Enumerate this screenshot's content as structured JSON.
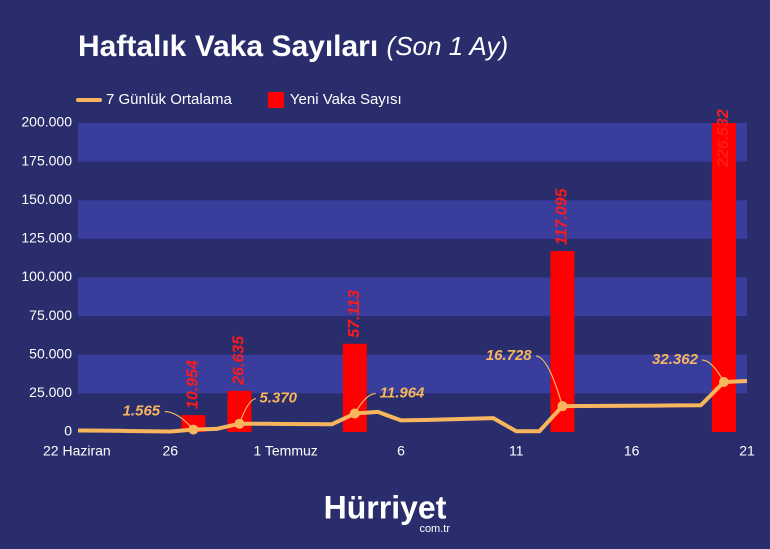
{
  "chart_data": {
    "type": "bar",
    "title": "Haftalık Vaka Sayıları",
    "subtitle": "(Son 1 Ay)",
    "categories": [
      "22 Haziran",
      null,
      null,
      null,
      "26",
      null,
      null,
      null,
      null,
      "1 Temmuz",
      null,
      null,
      null,
      null,
      "6",
      null,
      null,
      null,
      null,
      "11",
      null,
      null,
      null,
      null,
      "16",
      null,
      null,
      null,
      null,
      "21"
    ],
    "series": [
      {
        "name": "Yeni Vaka Sayısı",
        "type": "bar",
        "color": "#ff0000",
        "values": [
          null,
          null,
          null,
          null,
          null,
          10954,
          null,
          26635,
          null,
          null,
          null,
          null,
          57113,
          null,
          null,
          null,
          null,
          null,
          null,
          null,
          null,
          117095,
          null,
          null,
          null,
          null,
          null,
          null,
          226532,
          null
        ],
        "value_labels": [
          null,
          null,
          null,
          null,
          null,
          "10.954",
          null,
          "26.635",
          null,
          null,
          null,
          null,
          "57.113",
          null,
          null,
          null,
          null,
          null,
          null,
          null,
          null,
          "117.095",
          null,
          null,
          null,
          null,
          null,
          null,
          "226.532",
          null
        ]
      },
      {
        "name": "7 Günlük Ortalama",
        "type": "line",
        "color": "#f7b65e",
        "values": [
          1000,
          900,
          700,
          500,
          300,
          1565,
          2000,
          5370,
          5300,
          5200,
          5100,
          5000,
          11964,
          13000,
          7500,
          7800,
          8200,
          8600,
          9000,
          500,
          500,
          16728,
          16800,
          16900,
          17000,
          17100,
          17200,
          17300,
          32362,
          33000
        ],
        "value_labels": [
          null,
          null,
          null,
          null,
          null,
          "1.565",
          null,
          "5.370",
          null,
          null,
          null,
          null,
          "11.964",
          null,
          null,
          null,
          null,
          null,
          null,
          null,
          null,
          "16.728",
          null,
          null,
          null,
          null,
          null,
          null,
          "32.362",
          null
        ]
      }
    ],
    "ylim": [
      0,
      200000
    ],
    "yticks": [
      0,
      {
        "value": 25000,
        "label": "25.000"
      },
      {
        "value": 50000,
        "label": "50.000"
      },
      {
        "value": 75000,
        "label": "75.000"
      },
      {
        "value": 100000,
        "label": "100.000"
      },
      {
        "value": 125000,
        "label": "125.000"
      },
      {
        "value": 150000,
        "label": "150.000"
      },
      {
        "value": 175000,
        "label": "175.000"
      },
      {
        "value": 200000,
        "label": "200.000"
      }
    ],
    "grid": "bands",
    "legend": "top-left",
    "brand": "Hürriyet",
    "brand_suffix": "com.tr"
  }
}
